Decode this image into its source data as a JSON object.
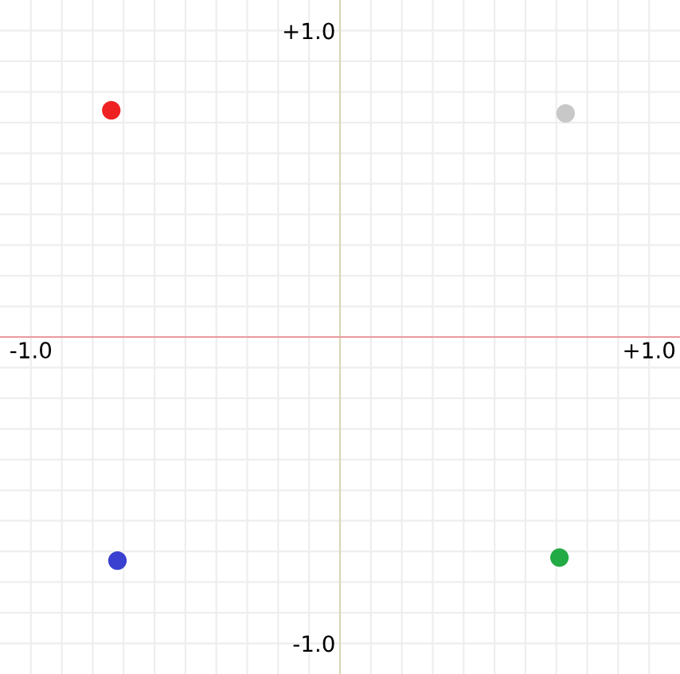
{
  "chart_data": {
    "type": "scatter",
    "x": [
      -0.74,
      0.73,
      -0.72,
      0.71
    ],
    "values": [
      0.74,
      0.73,
      -0.73,
      -0.72
    ],
    "colors": [
      "#ee2222",
      "#c8c8c8",
      "#3a40d0",
      "#22aa44"
    ],
    "xlim": [
      -1.1,
      1.1
    ],
    "ylim": [
      -1.1,
      1.1
    ],
    "xticks": [
      {
        "value": -1.0,
        "label": "-1.0"
      },
      {
        "value": -0.9,
        "label": null
      },
      {
        "value": -0.8,
        "label": null
      },
      {
        "value": -0.7,
        "label": null
      },
      {
        "value": -0.6,
        "label": null
      },
      {
        "value": -0.5,
        "label": null
      },
      {
        "value": -0.4,
        "label": null
      },
      {
        "value": -0.3,
        "label": null
      },
      {
        "value": -0.2,
        "label": null
      },
      {
        "value": -0.1,
        "label": null
      },
      {
        "value": 0.1,
        "label": null
      },
      {
        "value": 0.2,
        "label": null
      },
      {
        "value": 0.3,
        "label": null
      },
      {
        "value": 0.4,
        "label": null
      },
      {
        "value": 0.5,
        "label": null
      },
      {
        "value": 0.6,
        "label": null
      },
      {
        "value": 0.7,
        "label": null
      },
      {
        "value": 0.8,
        "label": null
      },
      {
        "value": 0.9,
        "label": null
      },
      {
        "value": 1.0,
        "label": "+1.0"
      }
    ],
    "yticks": [
      {
        "value": -1.0,
        "label": "-1.0"
      },
      {
        "value": -0.9,
        "label": null
      },
      {
        "value": -0.8,
        "label": null
      },
      {
        "value": -0.7,
        "label": null
      },
      {
        "value": -0.6,
        "label": null
      },
      {
        "value": -0.5,
        "label": null
      },
      {
        "value": -0.4,
        "label": null
      },
      {
        "value": -0.3,
        "label": null
      },
      {
        "value": -0.2,
        "label": null
      },
      {
        "value": -0.1,
        "label": null
      },
      {
        "value": 0.1,
        "label": null
      },
      {
        "value": 0.2,
        "label": null
      },
      {
        "value": 0.3,
        "label": null
      },
      {
        "value": 0.4,
        "label": null
      },
      {
        "value": 0.5,
        "label": null
      },
      {
        "value": 0.6,
        "label": null
      },
      {
        "value": 0.7,
        "label": null
      },
      {
        "value": 0.8,
        "label": null
      },
      {
        "value": 0.9,
        "label": null
      },
      {
        "value": 1.0,
        "label": "+1.0"
      }
    ],
    "grid": true,
    "marker": "circle"
  }
}
